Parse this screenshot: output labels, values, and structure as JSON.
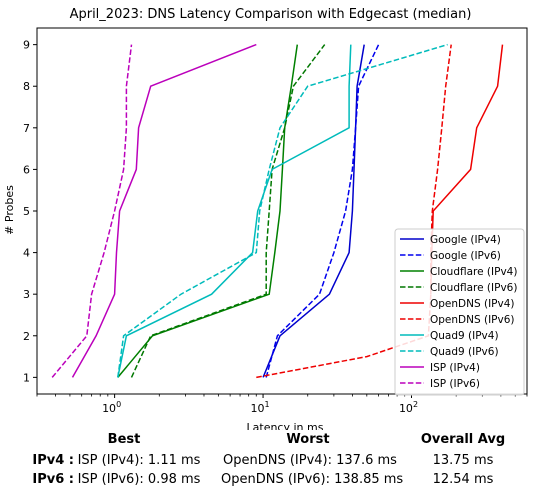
{
  "chart_data": {
    "type": "line",
    "title": "April_2023: DNS Latency Comparison with Edgecast (median)",
    "xlabel": "Latency in ms",
    "ylabel": "# Probes",
    "xscale": "log",
    "xlim": [
      0.3,
      600
    ],
    "ylim": [
      0.6,
      9.4
    ],
    "xticks": [
      {
        "value": 1,
        "label": "10^0"
      },
      {
        "value": 10,
        "label": "10^1"
      },
      {
        "value": 100,
        "label": "10^2"
      }
    ],
    "yticks": [
      1,
      2,
      3,
      4,
      5,
      6,
      7,
      8,
      9
    ],
    "grid": false,
    "legend_position": "lower-right",
    "series": [
      {
        "name": "Google (IPv4)",
        "color": "#0000cc",
        "dash": "solid",
        "points": [
          [
            10,
            1
          ],
          [
            13,
            2
          ],
          [
            28,
            3
          ],
          [
            38,
            4
          ],
          [
            40,
            5
          ],
          [
            41,
            6
          ],
          [
            42,
            7
          ],
          [
            43,
            8
          ],
          [
            48,
            9
          ]
        ]
      },
      {
        "name": "Google (IPv6)",
        "color": "#0000ee",
        "dash": "dashed",
        "points": [
          [
            10.5,
            1
          ],
          [
            12.5,
            2
          ],
          [
            24,
            3
          ],
          [
            30,
            4
          ],
          [
            36,
            5
          ],
          [
            40,
            6
          ],
          [
            42,
            7
          ],
          [
            44,
            8
          ],
          [
            60,
            9
          ]
        ]
      },
      {
        "name": "Cloudflare (IPv4)",
        "color": "#008000",
        "dash": "solid",
        "points": [
          [
            1.05,
            1
          ],
          [
            1.8,
            2
          ],
          [
            11,
            3
          ],
          [
            12,
            4
          ],
          [
            13,
            5
          ],
          [
            13.5,
            6
          ],
          [
            14,
            7
          ],
          [
            15.5,
            8
          ],
          [
            17,
            9
          ]
        ]
      },
      {
        "name": "Cloudflare (IPv6)",
        "color": "#007700",
        "dash": "dashed",
        "points": [
          [
            1.3,
            1
          ],
          [
            1.75,
            2
          ],
          [
            10.5,
            3
          ],
          [
            10.5,
            4
          ],
          [
            11,
            5
          ],
          [
            11.5,
            6
          ],
          [
            14,
            7
          ],
          [
            16,
            8
          ],
          [
            26,
            9
          ]
        ]
      },
      {
        "name": "OpenDNS (IPv4)",
        "color": "#ee0000",
        "dash": "solid",
        "points": [
          [
            135,
            3
          ],
          [
            137,
            4
          ],
          [
            140,
            5
          ],
          [
            250,
            6
          ],
          [
            275,
            7
          ],
          [
            380,
            8
          ],
          [
            410,
            9
          ]
        ]
      },
      {
        "name": "OpenDNS (IPv6)",
        "color": "#ee0000",
        "dash": "dashed",
        "points": [
          [
            9,
            1
          ],
          [
            50,
            1.5
          ],
          [
            130,
            2
          ],
          [
            135,
            3
          ],
          [
            135,
            4
          ],
          [
            138,
            5
          ],
          [
            150,
            6
          ],
          [
            160,
            7
          ],
          [
            170,
            8
          ],
          [
            185,
            9
          ]
        ]
      },
      {
        "name": "Quad9 (IPv4)",
        "color": "#00bbbb",
        "dash": "solid",
        "points": [
          [
            1.05,
            1
          ],
          [
            1.2,
            2
          ],
          [
            4.5,
            3
          ],
          [
            8.5,
            4
          ],
          [
            9.2,
            5
          ],
          [
            11.5,
            6
          ],
          [
            38,
            7
          ],
          [
            38,
            8
          ],
          [
            39,
            9
          ]
        ]
      },
      {
        "name": "Quad9 (IPv6)",
        "color": "#00bbbb",
        "dash": "dashed",
        "points": [
          [
            1.05,
            1
          ],
          [
            1.15,
            2
          ],
          [
            2.8,
            3
          ],
          [
            9,
            4
          ],
          [
            9.5,
            5
          ],
          [
            11,
            6
          ],
          [
            13,
            7
          ],
          [
            20,
            8
          ],
          [
            175,
            9
          ]
        ]
      },
      {
        "name": "ISP (IPv4)",
        "color": "#bb00bb",
        "dash": "solid",
        "points": [
          [
            0.52,
            1
          ],
          [
            0.75,
            2
          ],
          [
            1.0,
            3
          ],
          [
            1.03,
            4
          ],
          [
            1.08,
            5
          ],
          [
            1.4,
            6
          ],
          [
            1.45,
            7
          ],
          [
            1.75,
            8
          ],
          [
            9,
            9
          ]
        ]
      },
      {
        "name": "ISP (IPv6)",
        "color": "#bb00bb",
        "dash": "dashed",
        "points": [
          [
            0.38,
            1
          ],
          [
            0.65,
            2
          ],
          [
            0.7,
            3
          ],
          [
            0.85,
            4
          ],
          [
            1.0,
            5
          ],
          [
            1.15,
            6
          ],
          [
            1.2,
            7
          ],
          [
            1.2,
            8
          ],
          [
            1.3,
            9
          ]
        ]
      }
    ]
  },
  "summary": {
    "headers": [
      "Best",
      "Worst",
      "Overall Avg"
    ],
    "rows": [
      {
        "label": "IPv4 :",
        "best": "ISP (IPv4): 1.11 ms",
        "worst": "OpenDNS (IPv4): 137.6 ms",
        "avg": "13.75 ms"
      },
      {
        "label": "IPv6 :",
        "best": "ISP (IPv6): 0.98 ms",
        "worst": "OpenDNS (IPv6): 138.85 ms",
        "avg": "12.54 ms"
      }
    ]
  }
}
